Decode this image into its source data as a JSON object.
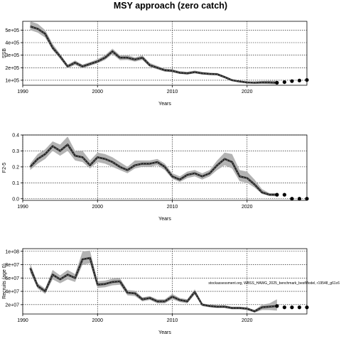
{
  "title": "MSY approach (zero catch)",
  "annotation": "stockassessment.org, WBSS_HAWG_2025_benchmark_bestModel, r19548_g61c6",
  "chart_data": [
    {
      "type": "line",
      "ylabel": "SSB",
      "xlabel": "Years",
      "xlim": [
        1990,
        2028
      ],
      "ylim": [
        60000,
        570000
      ],
      "x_ticks": [
        1990,
        2000,
        2010,
        2020
      ],
      "x_tick_labels": [
        "1990",
        "2000",
        "2010",
        "2020"
      ],
      "y_ticks": [
        100000,
        200000,
        300000,
        400000,
        500000
      ],
      "y_tick_labels": [
        "1e+05",
        "2e+05",
        "3e+05",
        "4e+05",
        "5e+05"
      ],
      "grid": true,
      "series": [
        {
          "x": [
            1991,
            1992,
            1993,
            1994,
            1995,
            1996,
            1997,
            1998,
            1999,
            2000,
            2001,
            2002,
            2003,
            2004,
            2005,
            2006,
            2007,
            2008,
            2009,
            2010,
            2011,
            2012,
            2013,
            2014,
            2015,
            2016,
            2017,
            2018,
            2019,
            2020,
            2021,
            2022,
            2023,
            2024
          ],
          "values": [
            530000,
            510000,
            470000,
            360000,
            290000,
            210000,
            240000,
            210000,
            230000,
            250000,
            280000,
            330000,
            280000,
            280000,
            265000,
            280000,
            220000,
            200000,
            180000,
            175000,
            160000,
            155000,
            165000,
            155000,
            150000,
            148000,
            125000,
            100000,
            90000,
            82000,
            80000,
            82000,
            82000,
            80000
          ],
          "lower": [
            500000,
            480000,
            440000,
            340000,
            270000,
            195000,
            222000,
            195000,
            215000,
            235000,
            262000,
            308000,
            260000,
            262000,
            248000,
            262000,
            205000,
            187000,
            168000,
            164000,
            150000,
            145000,
            155000,
            145000,
            141000,
            139000,
            117000,
            93000,
            83000,
            75000,
            72000,
            72000,
            70000,
            66000
          ],
          "upper": [
            570000,
            550000,
            500000,
            390000,
            310000,
            225000,
            258000,
            225000,
            245000,
            268000,
            300000,
            352000,
            300000,
            300000,
            282000,
            298000,
            238000,
            214000,
            192000,
            188000,
            172000,
            166000,
            177000,
            166000,
            160000,
            158000,
            134000,
            108000,
            97000,
            90000,
            90000,
            94000,
            96000,
            96000
          ]
        }
      ],
      "projection": {
        "x": [
          2025,
          2026,
          2027,
          2028
        ],
        "values": [
          85000,
          93000,
          98000,
          102000
        ]
      }
    },
    {
      "type": "line",
      "ylabel": "F2-5",
      "xlabel": "Years",
      "xlim": [
        1990,
        2028
      ],
      "ylim": [
        -0.01,
        0.4
      ],
      "x_ticks": [
        1990,
        2000,
        2010,
        2020
      ],
      "x_tick_labels": [
        "1990",
        "2000",
        "2010",
        "2020"
      ],
      "y_ticks": [
        0.0,
        0.1,
        0.2,
        0.3,
        0.4
      ],
      "y_tick_labels": [
        "0.0",
        "0.1",
        "0.2",
        "0.3",
        "0.4"
      ],
      "grid": true,
      "series": [
        {
          "x": [
            1991,
            1992,
            1993,
            1994,
            1995,
            1996,
            1997,
            1998,
            1999,
            2000,
            2001,
            2002,
            2003,
            2004,
            2005,
            2006,
            2007,
            2008,
            2009,
            2010,
            2011,
            2012,
            2013,
            2014,
            2015,
            2016,
            2017,
            2018,
            2019,
            2020,
            2021,
            2022,
            2023,
            2024
          ],
          "values": [
            0.2,
            0.25,
            0.28,
            0.33,
            0.3,
            0.34,
            0.27,
            0.26,
            0.21,
            0.26,
            0.25,
            0.23,
            0.2,
            0.18,
            0.21,
            0.22,
            0.22,
            0.23,
            0.2,
            0.14,
            0.12,
            0.15,
            0.16,
            0.14,
            0.16,
            0.21,
            0.25,
            0.23,
            0.14,
            0.13,
            0.09,
            0.04,
            0.025,
            0.025
          ],
          "lower": [
            0.18,
            0.22,
            0.25,
            0.3,
            0.27,
            0.3,
            0.24,
            0.23,
            0.19,
            0.23,
            0.22,
            0.2,
            0.18,
            0.16,
            0.19,
            0.2,
            0.2,
            0.21,
            0.18,
            0.125,
            0.105,
            0.13,
            0.14,
            0.12,
            0.14,
            0.18,
            0.21,
            0.19,
            0.11,
            0.1,
            0.07,
            0.03,
            0.018,
            0.015
          ],
          "upper": [
            0.22,
            0.28,
            0.31,
            0.36,
            0.34,
            0.39,
            0.3,
            0.3,
            0.24,
            0.29,
            0.28,
            0.26,
            0.23,
            0.2,
            0.24,
            0.24,
            0.24,
            0.25,
            0.22,
            0.16,
            0.14,
            0.17,
            0.18,
            0.16,
            0.18,
            0.24,
            0.29,
            0.28,
            0.18,
            0.17,
            0.12,
            0.06,
            0.035,
            0.035
          ]
        }
      ],
      "projection": {
        "x": [
          2025,
          2026,
          2027,
          2028
        ],
        "values": [
          0.025,
          0.0,
          0.0,
          0.0
        ]
      }
    },
    {
      "type": "line",
      "ylabel": "Recruits (age 0)",
      "xlabel": "Years",
      "xlim": [
        1990,
        2028
      ],
      "ylim": [
        6000000,
        104000000
      ],
      "x_ticks": [
        1990,
        2000,
        2010,
        2020
      ],
      "x_tick_labels": [
        "1990",
        "2000",
        "2010",
        "2020"
      ],
      "y_ticks": [
        20000000,
        40000000,
        60000000,
        80000000,
        100000000
      ],
      "y_tick_labels": [
        "2e+07",
        "4e+07",
        "6e+07",
        "8e+07",
        "1e+08"
      ],
      "grid": true,
      "series": [
        {
          "x": [
            1991,
            1992,
            1993,
            1994,
            1995,
            1996,
            1997,
            1998,
            1999,
            2000,
            2001,
            2002,
            2003,
            2004,
            2005,
            2006,
            2007,
            2008,
            2009,
            2010,
            2011,
            2012,
            2013,
            2014,
            2015,
            2016,
            2017,
            2018,
            2019,
            2020,
            2021,
            2022,
            2023,
            2024
          ],
          "values": [
            75000000,
            48000000,
            40000000,
            65000000,
            58000000,
            65000000,
            60000000,
            88000000,
            90000000,
            50000000,
            51000000,
            54000000,
            55000000,
            38000000,
            37000000,
            28000000,
            30000000,
            25000000,
            25000000,
            32000000,
            27000000,
            25000000,
            39000000,
            20000000,
            18000000,
            17000000,
            17000000,
            15000000,
            15000000,
            14000000,
            10000000,
            16000000,
            17000000,
            18000000
          ],
          "lower": [
            68000000,
            44000000,
            36000000,
            58000000,
            52000000,
            58000000,
            54000000,
            80000000,
            82000000,
            45000000,
            46000000,
            49000000,
            50000000,
            34000000,
            33000000,
            25000000,
            27000000,
            22000000,
            22000000,
            28000000,
            24000000,
            22000000,
            35000000,
            18000000,
            16000000,
            15000000,
            15000000,
            13000000,
            13000000,
            12000000,
            8000000,
            12000000,
            12000000,
            11000000
          ],
          "upper": [
            82000000,
            52000000,
            44000000,
            72000000,
            64000000,
            72000000,
            66000000,
            100000000,
            101000000,
            55000000,
            56000000,
            59000000,
            60000000,
            42000000,
            41000000,
            31000000,
            33000000,
            28000000,
            28000000,
            36000000,
            30000000,
            28000000,
            43000000,
            22000000,
            20000000,
            19000000,
            19000000,
            17000000,
            17000000,
            16000000,
            12000000,
            20000000,
            22000000,
            28000000
          ]
        }
      ],
      "projection": {
        "x": [
          2025,
          2026,
          2027,
          2028
        ],
        "values": [
          16000000,
          16000000,
          16000000,
          16000000
        ]
      }
    }
  ]
}
